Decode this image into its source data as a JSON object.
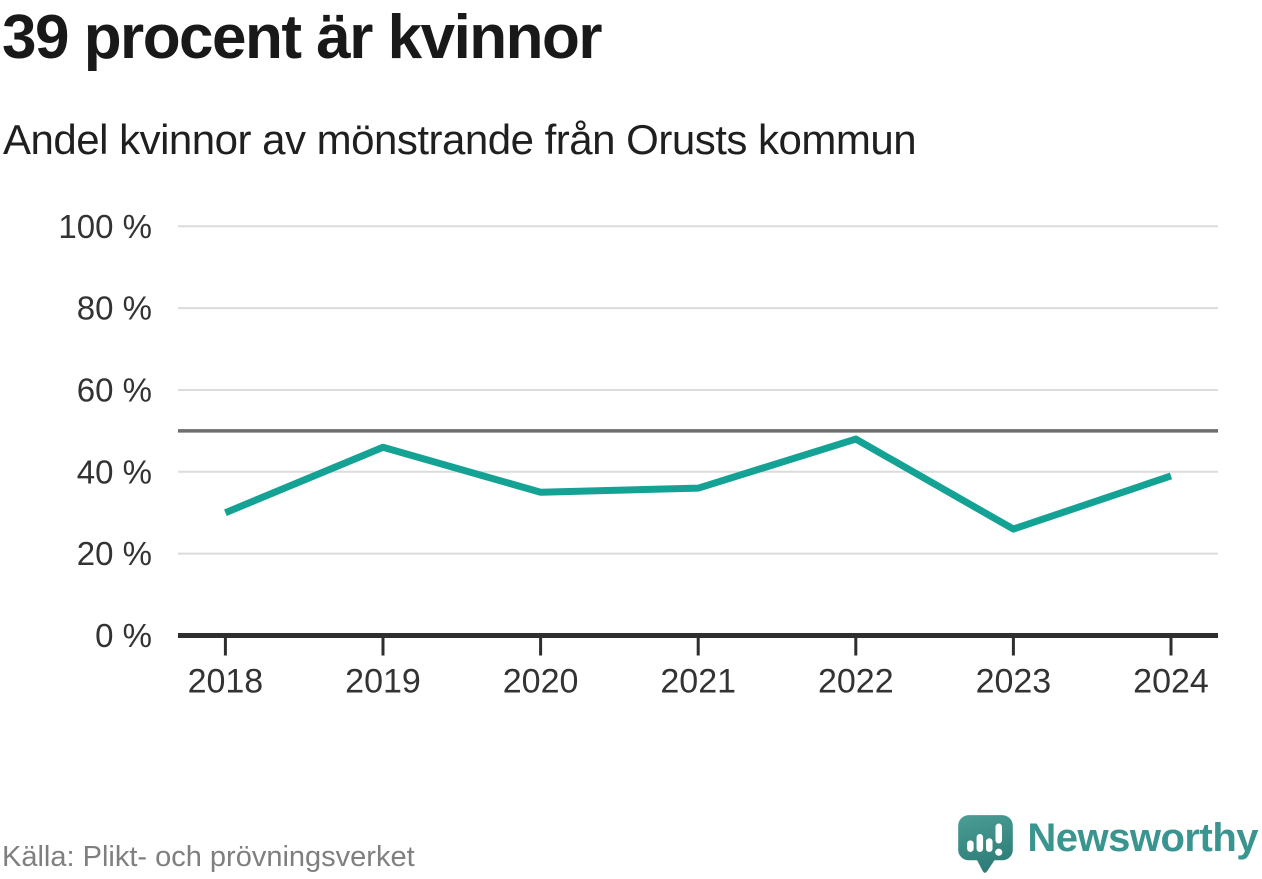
{
  "header": {
    "title": "39 procent är kvinnor",
    "subtitle": "Andel kvinnor av mönstrande från Orusts kommun"
  },
  "chart_data": {
    "type": "line",
    "title": "39 procent är kvinnor",
    "subtitle": "Andel kvinnor av mönstrande från Orusts kommun",
    "categories": [
      "2018",
      "2019",
      "2020",
      "2021",
      "2022",
      "2023",
      "2024"
    ],
    "series": [
      {
        "name": "Andel kvinnor av mönstrande",
        "values": [
          30,
          46,
          35,
          36,
          48,
          26,
          39
        ]
      }
    ],
    "unit": "%",
    "ylim": [
      0,
      100
    ],
    "yticks": [
      0,
      20,
      40,
      60,
      80,
      100
    ],
    "ytick_suffix": " %",
    "reference_line": 50,
    "grid": true,
    "legend": "none"
  },
  "footer": {
    "source": "Källa: Plikt- och prövningsverket",
    "brand": "Newsworthy"
  },
  "colors": {
    "background": "#ffffff",
    "title_text": "#191919",
    "axis_text": "#333333",
    "grid_line": "#dcdcdc",
    "reference_line": "#6e6e6e",
    "axis_line": "#2e2e2e",
    "accent_line": "#14a295",
    "source_text": "#7f7f7f",
    "brand_teal": "#3a948f",
    "brand_mark_top": "#4c9d96",
    "brand_mark_bottom": "#2e7d78"
  }
}
